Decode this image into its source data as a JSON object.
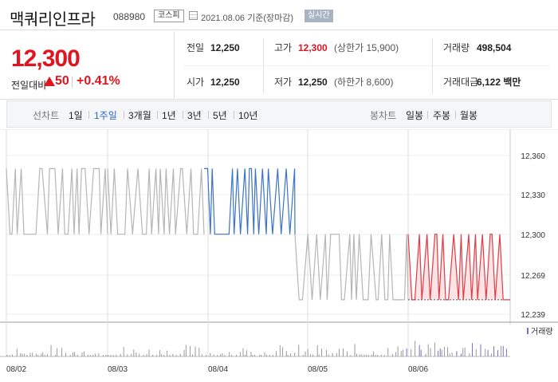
{
  "header": {
    "name": "맥쿼리인프라",
    "code": "088980",
    "market": "코스피",
    "date": "2021.08.06 기준(장마감)",
    "realtime": "실시간"
  },
  "price": {
    "current": "12,300",
    "change_label": "전일대비",
    "change": "50",
    "change_pct": "+0.41%",
    "direction": "up"
  },
  "info": {
    "prev_label": "전일",
    "prev": "12,250",
    "high_label": "고가",
    "high": "12,300",
    "high_limit": "(상한가 15,900)",
    "volume_label": "거래량",
    "volume": "498,504",
    "open_label": "시가",
    "open": "12,250",
    "low_label": "저가",
    "low": "12,250",
    "low_limit": "(하한가 8,600)",
    "amount_label": "거래대금",
    "amount": "6,122 백만"
  },
  "tabs": {
    "line_title": "선차트",
    "line": [
      "1일",
      "1주일",
      "3개월",
      "1년",
      "3년",
      "5년",
      "10년"
    ],
    "active": "1주일",
    "candle_title": "봉차트",
    "candle": [
      "일봉",
      "주봉",
      "월봉"
    ]
  },
  "colors": {
    "up": "#e0151f",
    "accent": "#2765d3",
    "gray_line": "#b5b5b5",
    "blue_line": "#3b74c4",
    "red_line": "#e03c46"
  },
  "chart_data": {
    "type": "line",
    "y_ticks": [
      "12,360",
      "12,330",
      "12,300",
      "12,269",
      "12,239"
    ],
    "ylim": [
      12239,
      12360
    ],
    "x_ticks": [
      "08/02",
      "08/03",
      "08/04",
      "08/05",
      "08/06"
    ],
    "volume_label": "거래량",
    "series": [
      {
        "day": "08/02",
        "color": "gray",
        "low": 12300,
        "high": 12350
      },
      {
        "day": "08/03",
        "color": "gray",
        "low": 12300,
        "high": 12350
      },
      {
        "day": "08/04",
        "color": "blue",
        "low": 12300,
        "high": 12350
      },
      {
        "day": "08/05",
        "color": "gray",
        "low": 12250,
        "high": 12300
      },
      {
        "day": "08/06",
        "color": "red",
        "low": 12250,
        "high": 12300
      }
    ]
  }
}
